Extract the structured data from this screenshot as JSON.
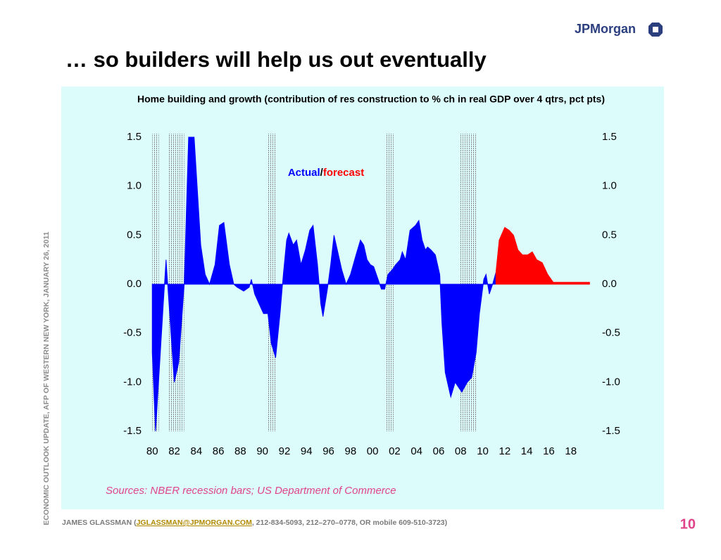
{
  "slide": {
    "logo": "JPMorgan",
    "title": "… so builders will help us out eventually",
    "side_note": "ECONOMIC OUTLOOK UPDATE, AFP OF WESTERN NEW YORK, JANUARY 26, 2011",
    "footer": {
      "prefix": "JAMES GLASSMAN (",
      "email": "JGLASSMAN@JPMORGAN.COM",
      "suffix": ", 212-834-5093, 212–270–0778, OR mobile 609-510-3723)"
    },
    "page_number": "10"
  },
  "chart_data": {
    "type": "area",
    "title": "Home building and growth (contribution of res construction to % ch in real GDP over 4 qtrs, pct pts)",
    "source": "Sources: NBER recession bars; US Department of Commerce",
    "legend_separator": "/",
    "recessions": [
      [
        1980.0,
        1980.6
      ],
      [
        1981.5,
        1982.9
      ],
      [
        1990.5,
        1991.2
      ],
      [
        2001.2,
        2001.9
      ],
      [
        2007.9,
        2009.5
      ]
    ],
    "series": [
      {
        "name": "Actual",
        "color": "#0000ff",
        "x": [
          1980.0,
          1980.3,
          1981.0,
          1981.25,
          1982.0,
          1982.4,
          1982.9,
          1983.3,
          1983.8,
          1984.4,
          1984.8,
          1985.2,
          1985.7,
          1986.1,
          1986.5,
          1987.0,
          1987.4,
          1987.7,
          1988.0,
          1988.3,
          1988.8,
          1989.0,
          1989.3,
          1989.7,
          1990.1,
          1990.5,
          1990.8,
          1991.2,
          1991.6,
          1991.9,
          1992.2,
          1992.4,
          1992.8,
          1993.1,
          1993.5,
          1993.9,
          1994.3,
          1994.6,
          1995.0,
          1995.3,
          1995.5,
          1995.9,
          1996.2,
          1996.5,
          1996.9,
          1997.2,
          1997.6,
          1998.0,
          1998.5,
          1998.9,
          1999.2,
          1999.5,
          1999.8,
          2000.1,
          2000.5,
          2000.8,
          2001.1,
          2001.4,
          2001.8,
          2002.1,
          2002.5,
          2002.7,
          2003.0,
          2003.4,
          2003.9,
          2004.2,
          2004.5,
          2004.8,
          2005.0,
          2005.3,
          2005.7,
          2006.1,
          2006.3,
          2006.6,
          2007.1,
          2007.5,
          2007.8,
          2008.1,
          2008.6,
          2009.0,
          2009.4,
          2009.7,
          2010.1,
          2010.3,
          2010.6,
          2010.9,
          2011.2
        ],
        "values": [
          -0.7,
          -1.5,
          -0.2,
          0.25,
          -1.0,
          -0.8,
          0.0,
          1.5,
          1.5,
          0.4,
          0.1,
          0.0,
          0.2,
          0.6,
          0.63,
          0.2,
          0.0,
          -0.03,
          -0.05,
          -0.07,
          -0.03,
          0.05,
          -0.1,
          -0.2,
          -0.3,
          -0.3,
          -0.6,
          -0.75,
          -0.3,
          0.1,
          0.45,
          0.52,
          0.4,
          0.45,
          0.2,
          0.35,
          0.55,
          0.6,
          0.2,
          -0.2,
          -0.33,
          -0.05,
          0.2,
          0.5,
          0.3,
          0.15,
          0.0,
          0.1,
          0.3,
          0.45,
          0.4,
          0.25,
          0.2,
          0.18,
          0.05,
          -0.05,
          -0.05,
          0.1,
          0.15,
          0.2,
          0.25,
          0.33,
          0.25,
          0.55,
          0.6,
          0.65,
          0.45,
          0.35,
          0.38,
          0.35,
          0.3,
          0.1,
          -0.4,
          -0.9,
          -1.15,
          -1.0,
          -1.05,
          -1.1,
          -1.0,
          -0.95,
          -0.7,
          -0.3,
          0.05,
          0.1,
          -0.1,
          0.0,
          0.12
        ]
      },
      {
        "name": "forecast",
        "color": "#ff0000",
        "x": [
          2011.2,
          2011.5,
          2012.0,
          2012.4,
          2012.8,
          2013.2,
          2013.6,
          2014.1,
          2014.5,
          2014.9,
          2015.4,
          2015.9,
          2016.4,
          2017.0,
          2018.0,
          2019.7
        ],
        "values": [
          0.12,
          0.45,
          0.58,
          0.55,
          0.5,
          0.35,
          0.3,
          0.3,
          0.33,
          0.25,
          0.22,
          0.1,
          0.02,
          0.02,
          0.02,
          0.02
        ]
      }
    ],
    "xlim": [
      1979.6,
      2020.0
    ],
    "xticks": [
      {
        "value": 1980,
        "label": "80"
      },
      {
        "value": 1982,
        "label": "82"
      },
      {
        "value": 1984,
        "label": "84"
      },
      {
        "value": 1986,
        "label": "86"
      },
      {
        "value": 1988,
        "label": "88"
      },
      {
        "value": 1990,
        "label": "90"
      },
      {
        "value": 1992,
        "label": "92"
      },
      {
        "value": 1994,
        "label": "94"
      },
      {
        "value": 1996,
        "label": "96"
      },
      {
        "value": 1998,
        "label": "98"
      },
      {
        "value": 2000,
        "label": "00"
      },
      {
        "value": 2002,
        "label": "02"
      },
      {
        "value": 2004,
        "label": "04"
      },
      {
        "value": 2006,
        "label": "06"
      },
      {
        "value": 2008,
        "label": "08"
      },
      {
        "value": 2010,
        "label": "10"
      },
      {
        "value": 2012,
        "label": "12"
      },
      {
        "value": 2014,
        "label": "14"
      },
      {
        "value": 2016,
        "label": "16"
      },
      {
        "value": 2018,
        "label": "18"
      }
    ],
    "ylim": [
      -1.5,
      1.5
    ],
    "yticks": [
      1.5,
      {
        "value": 1.0,
        "label": "1.0"
      },
      0.5,
      {
        "value": 0.0,
        "label": "0.0"
      },
      -0.5,
      {
        "value": -1.0,
        "label": "-1.0"
      },
      -1.5
    ],
    "right_axis": true
  }
}
